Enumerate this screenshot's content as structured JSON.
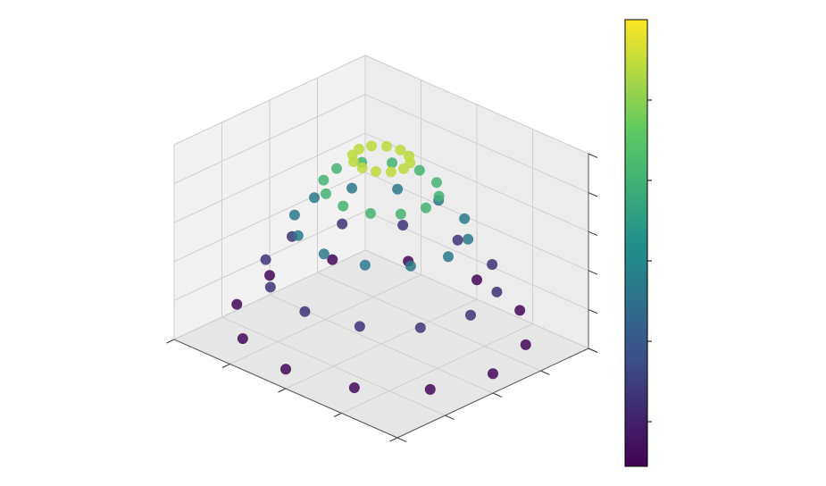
{
  "chart_data": {
    "type": "scatter3d",
    "colormap": "viridis",
    "grid": true,
    "xlim": [
      -1,
      1
    ],
    "ylim": [
      -1,
      1
    ],
    "zlim": [
      0,
      1
    ],
    "xticks": [
      -1,
      -0.5,
      0,
      0.5,
      1
    ],
    "yticks": [
      -1,
      -0.5,
      0,
      0.5,
      1
    ],
    "zticks": [
      0,
      0.2,
      0.4,
      0.6,
      0.8,
      1
    ],
    "clim": [
      0,
      1
    ],
    "cticks": [
      0.1,
      0.28,
      0.46,
      0.64,
      0.82
    ],
    "series": [
      {
        "x": [
          0.2,
          0.4,
          0.6,
          0.8,
          1
        ],
        "y": [
          0,
          0,
          0,
          0,
          0
        ],
        "z": [
          0.95,
          0.8,
          0.6,
          0.35,
          0.1
        ],
        "c": [
          0.9,
          0.65,
          0.4,
          0.15,
          0.02
        ]
      },
      {
        "x": [
          0.173,
          0.346,
          0.52,
          0.693,
          0.866
        ],
        "y": [
          0.1,
          0.2,
          0.3,
          0.4,
          0.5
        ],
        "z": [
          0.95,
          0.8,
          0.6,
          0.35,
          0.1
        ],
        "c": [
          0.9,
          0.65,
          0.4,
          0.15,
          0.02
        ]
      },
      {
        "x": [
          0.1,
          0.2,
          0.3,
          0.4,
          0.5
        ],
        "y": [
          0.173,
          0.346,
          0.52,
          0.693,
          0.866
        ],
        "z": [
          0.95,
          0.8,
          0.6,
          0.35,
          0.1
        ],
        "c": [
          0.9,
          0.65,
          0.4,
          0.15,
          0.02
        ]
      },
      {
        "x": [
          0,
          0,
          0,
          0,
          0
        ],
        "y": [
          0.2,
          0.4,
          0.6,
          0.8,
          1
        ],
        "z": [
          0.95,
          0.8,
          0.6,
          0.35,
          0.1
        ],
        "c": [
          0.9,
          0.65,
          0.4,
          0.15,
          0.02
        ]
      },
      {
        "x": [
          -0.1,
          -0.2,
          -0.3,
          -0.4,
          -0.5
        ],
        "y": [
          0.173,
          0.346,
          0.52,
          0.693,
          0.866
        ],
        "z": [
          0.95,
          0.8,
          0.6,
          0.35,
          0.1
        ],
        "c": [
          0.9,
          0.65,
          0.4,
          0.15,
          0.02
        ]
      },
      {
        "x": [
          -0.173,
          -0.346,
          -0.52,
          -0.693,
          -0.866
        ],
        "y": [
          0.1,
          0.2,
          0.3,
          0.4,
          0.5
        ],
        "z": [
          0.95,
          0.8,
          0.6,
          0.35,
          0.1
        ],
        "c": [
          0.9,
          0.65,
          0.4,
          0.15,
          0.02
        ]
      },
      {
        "x": [
          -0.2,
          -0.4,
          -0.6,
          -0.8,
          -1
        ],
        "y": [
          0,
          0,
          0,
          0,
          0
        ],
        "z": [
          0.95,
          0.8,
          0.6,
          0.35,
          0.1
        ],
        "c": [
          0.9,
          0.65,
          0.4,
          0.15,
          0.02
        ]
      },
      {
        "x": [
          -0.173,
          -0.346,
          -0.52,
          -0.693,
          -0.866
        ],
        "y": [
          -0.1,
          -0.2,
          -0.3,
          -0.4,
          -0.5
        ],
        "z": [
          0.95,
          0.8,
          0.6,
          0.35,
          0.1
        ],
        "c": [
          0.9,
          0.65,
          0.4,
          0.15,
          0.02
        ]
      },
      {
        "x": [
          -0.1,
          -0.2,
          -0.3,
          -0.4,
          -0.5
        ],
        "y": [
          -0.173,
          -0.346,
          -0.52,
          -0.693,
          -0.866
        ],
        "z": [
          0.95,
          0.8,
          0.6,
          0.35,
          0.1
        ],
        "c": [
          0.9,
          0.65,
          0.4,
          0.15,
          0.02
        ]
      },
      {
        "x": [
          0,
          0,
          0,
          0,
          0
        ],
        "y": [
          -0.2,
          -0.4,
          -0.6,
          -0.8,
          -1
        ],
        "z": [
          0.95,
          0.8,
          0.6,
          0.35,
          0.1
        ],
        "c": [
          0.9,
          0.65,
          0.4,
          0.15,
          0.02
        ]
      },
      {
        "x": [
          0.1,
          0.2,
          0.3,
          0.4,
          0.5
        ],
        "y": [
          -0.173,
          -0.346,
          -0.52,
          -0.693,
          -0.866
        ],
        "z": [
          0.95,
          0.8,
          0.6,
          0.35,
          0.1
        ],
        "c": [
          0.9,
          0.65,
          0.4,
          0.15,
          0.02
        ]
      },
      {
        "x": [
          0.173,
          0.346,
          0.52,
          0.693,
          0.866
        ],
        "y": [
          -0.1,
          -0.2,
          -0.3,
          -0.4,
          -0.5
        ],
        "z": [
          0.95,
          0.8,
          0.6,
          0.35,
          0.1
        ],
        "c": [
          0.9,
          0.65,
          0.4,
          0.15,
          0.02
        ]
      }
    ]
  }
}
